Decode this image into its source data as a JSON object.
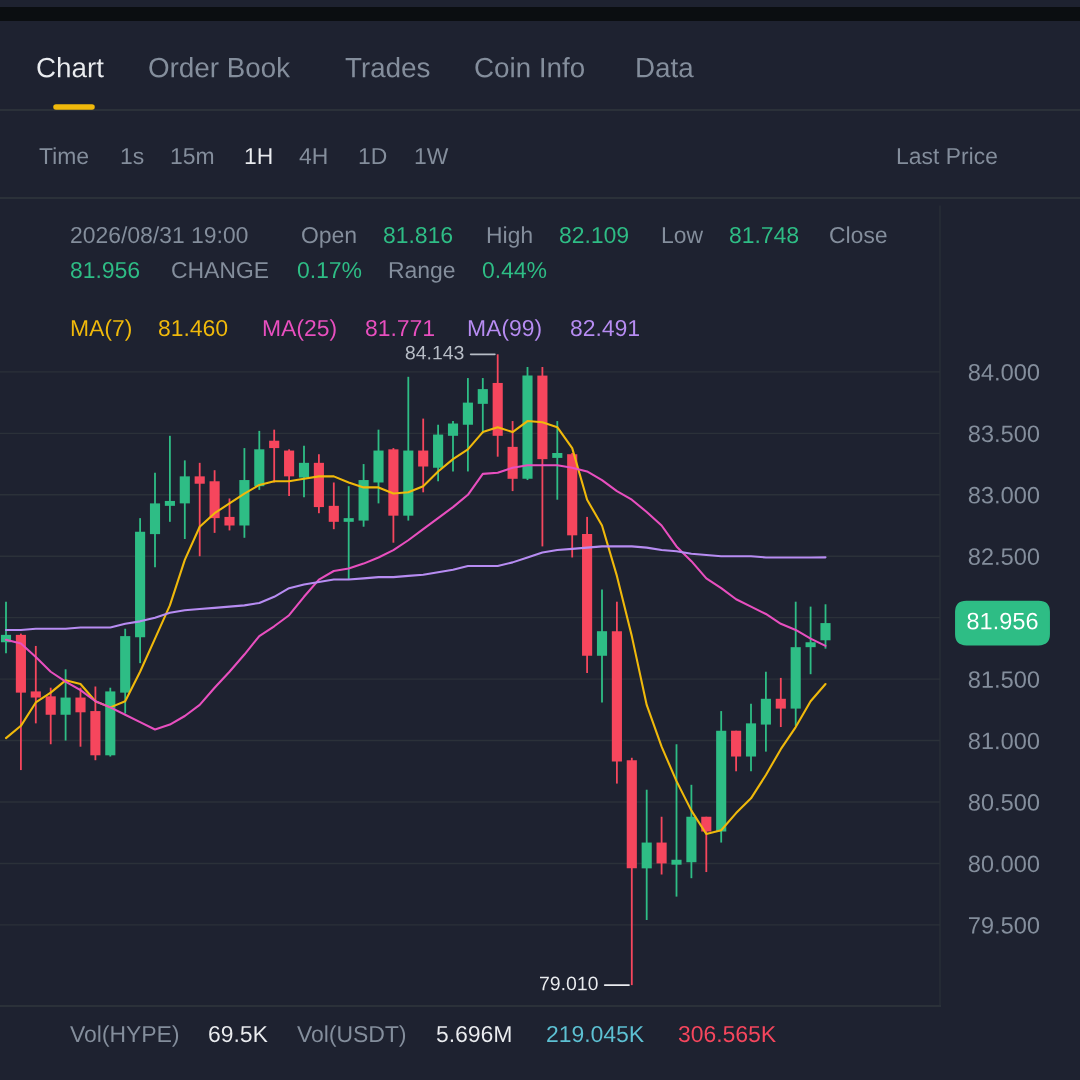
{
  "chart_data": {
    "type": "candlestick",
    "categories": [
      null,
      null,
      null,
      null,
      null,
      null,
      null,
      null,
      null,
      null,
      null,
      null,
      null,
      null,
      null,
      null,
      null,
      null,
      null,
      null,
      null,
      null,
      null,
      null,
      null,
      null,
      null,
      null,
      null,
      null,
      null,
      null,
      null,
      null,
      null,
      null,
      null,
      null,
      null,
      null,
      null,
      null,
      null,
      null,
      null,
      null,
      null,
      null,
      null,
      null,
      null,
      null,
      null,
      null,
      null,
      null
    ],
    "ohlc": [
      [
        81.8,
        82.13,
        81.71,
        81.86
      ],
      [
        81.86,
        81.87,
        80.76,
        81.39
      ],
      [
        81.4,
        81.77,
        81.14,
        81.35
      ],
      [
        81.36,
        81.43,
        80.97,
        81.21
      ],
      [
        81.21,
        81.58,
        81.0,
        81.35
      ],
      [
        81.35,
        81.43,
        80.95,
        81.23
      ],
      [
        81.24,
        81.44,
        80.84,
        80.88
      ],
      [
        80.88,
        81.43,
        80.87,
        81.4
      ],
      [
        81.39,
        81.91,
        81.22,
        81.85
      ],
      [
        81.84,
        82.81,
        81.63,
        82.7
      ],
      [
        82.68,
        83.18,
        82.41,
        82.93
      ],
      [
        82.91,
        83.48,
        82.78,
        82.95
      ],
      [
        82.93,
        83.28,
        82.64,
        83.15
      ],
      [
        83.15,
        83.26,
        82.5,
        83.09
      ],
      [
        83.11,
        83.2,
        82.69,
        82.81
      ],
      [
        82.82,
        82.97,
        82.71,
        82.75
      ],
      [
        82.75,
        83.38,
        82.65,
        83.12
      ],
      [
        83.07,
        83.52,
        83.04,
        83.37
      ],
      [
        83.44,
        83.53,
        83.1,
        83.38
      ],
      [
        83.36,
        83.37,
        82.99,
        83.15
      ],
      [
        83.14,
        83.4,
        82.98,
        83.26
      ],
      [
        83.26,
        83.33,
        82.85,
        82.9
      ],
      [
        82.91,
        83.1,
        82.72,
        82.78
      ],
      [
        82.78,
        83.07,
        82.31,
        82.81
      ],
      [
        82.79,
        83.25,
        82.74,
        83.12
      ],
      [
        83.1,
        83.53,
        82.93,
        83.36
      ],
      [
        83.37,
        83.38,
        82.61,
        82.83
      ],
      [
        82.83,
        83.96,
        82.79,
        83.36
      ],
      [
        83.36,
        83.62,
        83.02,
        83.23
      ],
      [
        83.22,
        83.57,
        83.11,
        83.49
      ],
      [
        83.48,
        83.6,
        83.19,
        83.58
      ],
      [
        83.57,
        83.95,
        83.19,
        83.75
      ],
      [
        83.74,
        83.95,
        83.5,
        83.86
      ],
      [
        83.91,
        84.143,
        83.31,
        83.48
      ],
      [
        83.39,
        83.6,
        83.03,
        83.13
      ],
      [
        83.13,
        84.04,
        83.12,
        83.97
      ],
      [
        83.97,
        84.04,
        82.58,
        83.29
      ],
      [
        83.3,
        83.6,
        82.96,
        83.34
      ],
      [
        83.33,
        83.34,
        82.49,
        82.67
      ],
      [
        82.68,
        82.82,
        81.55,
        81.69
      ],
      [
        81.69,
        82.23,
        81.31,
        81.89
      ],
      [
        81.89,
        82.13,
        80.65,
        80.83
      ],
      [
        80.84,
        80.86,
        79.01,
        79.96
      ],
      [
        79.96,
        80.6,
        79.54,
        80.17
      ],
      [
        80.17,
        80.38,
        79.91,
        80.0
      ],
      [
        79.99,
        80.97,
        79.73,
        80.03
      ],
      [
        80.01,
        80.64,
        79.88,
        80.38
      ],
      [
        80.38,
        80.38,
        79.93,
        80.26
      ],
      [
        80.26,
        81.24,
        80.17,
        81.08
      ],
      [
        81.08,
        81.08,
        80.75,
        80.87
      ],
      [
        80.87,
        81.3,
        80.75,
        81.14
      ],
      [
        81.13,
        81.56,
        80.91,
        81.34
      ],
      [
        81.34,
        81.51,
        81.11,
        81.26
      ],
      [
        81.26,
        82.13,
        81.12,
        81.76
      ],
      [
        81.76,
        82.09,
        81.54,
        81.8
      ],
      [
        81.816,
        82.109,
        81.748,
        81.956
      ]
    ],
    "series": [
      {
        "name": "MA(7)",
        "type": "line",
        "color": "#f0b90b",
        "values": [
          81.02,
          81.12,
          81.31,
          81.39,
          81.49,
          81.46,
          81.32,
          81.27,
          81.32,
          81.56,
          81.83,
          82.1,
          82.47,
          82.74,
          82.85,
          82.93,
          83.01,
          83.08,
          83.11,
          83.11,
          83.13,
          83.15,
          83.15,
          83.1,
          83.06,
          83.06,
          83.01,
          83.02,
          83.07,
          83.19,
          83.29,
          83.37,
          83.51,
          83.55,
          83.51,
          83.6,
          83.59,
          83.55,
          83.38,
          82.96,
          82.75,
          82.34,
          81.85,
          81.29,
          80.95,
          80.67,
          80.43,
          80.24,
          80.27,
          80.41,
          80.53,
          80.72,
          80.93,
          81.11,
          81.32,
          81.46
        ]
      },
      {
        "name": "MA(25)",
        "type": "line",
        "color": "#e84fbf",
        "values": [
          81.82,
          81.79,
          81.68,
          81.56,
          81.48,
          81.41,
          81.32,
          81.27,
          81.21,
          81.15,
          81.09,
          81.13,
          81.2,
          81.29,
          81.43,
          81.56,
          81.7,
          81.85,
          81.93,
          82.02,
          82.17,
          82.31,
          82.38,
          82.4,
          82.44,
          82.49,
          82.55,
          82.63,
          82.72,
          82.81,
          82.9,
          83.0,
          83.17,
          83.18,
          83.22,
          83.24,
          83.24,
          83.24,
          83.22,
          83.19,
          83.12,
          83.03,
          82.96,
          82.86,
          82.75,
          82.58,
          82.46,
          82.32,
          82.24,
          82.15,
          82.09,
          82.03,
          81.95,
          81.9,
          81.83,
          81.771
        ]
      },
      {
        "name": "MA(99)",
        "type": "line",
        "color": "#b78cf2",
        "values": [
          81.9,
          81.9,
          81.91,
          81.91,
          81.91,
          81.92,
          81.92,
          81.92,
          81.95,
          81.97,
          82.0,
          82.04,
          82.06,
          82.07,
          82.08,
          82.09,
          82.1,
          82.12,
          82.17,
          82.24,
          82.27,
          82.29,
          82.31,
          82.31,
          82.32,
          82.33,
          82.33,
          82.34,
          82.35,
          82.37,
          82.39,
          82.42,
          82.42,
          82.42,
          82.45,
          82.49,
          82.53,
          82.55,
          82.56,
          82.57,
          82.58,
          82.58,
          82.58,
          82.57,
          82.55,
          82.54,
          82.52,
          82.51,
          82.5,
          82.5,
          82.5,
          82.49,
          82.49,
          82.49,
          82.49,
          82.491
        ]
      }
    ],
    "ylim": [
      78.84,
      85.35
    ],
    "yticks": [
      {
        "value": 79.5,
        "label": "79.500"
      },
      {
        "value": 80,
        "label": "80.000"
      },
      {
        "value": 80.5,
        "label": "80.500"
      },
      {
        "value": 81,
        "label": "81.000"
      },
      {
        "value": 81.5,
        "label": "81.500"
      },
      {
        "value": 82,
        "label": null
      },
      {
        "value": 82.5,
        "label": "82.500"
      },
      {
        "value": 83,
        "label": "83.000"
      },
      {
        "value": 83.5,
        "label": "83.500"
      },
      {
        "value": 84,
        "label": "84.000"
      }
    ],
    "grid": "y",
    "legend": "top left",
    "tick_labels": "y",
    "annotations": [
      "Chart",
      "Order Book",
      "Trades",
      "Coin Info",
      "Data",
      "Time",
      "1s",
      "15m",
      "1H",
      "4H",
      "1D",
      "1W",
      "Last Price",
      "2026/08/31 19:00",
      "Open",
      "High",
      "Low",
      "Close",
      "CHANGE",
      "0.17%",
      "Range",
      "0.44%",
      "Vol(HYPE)",
      "69.5K",
      "Vol(USDT)",
      "5.696M",
      "219.045K",
      "306.565K",
      "84.143",
      "79.010",
      "81.956",
      "81.816",
      "82.109",
      "81.748",
      "81.956",
      "81.460",
      "81.771",
      "82.491"
    ]
  }
}
